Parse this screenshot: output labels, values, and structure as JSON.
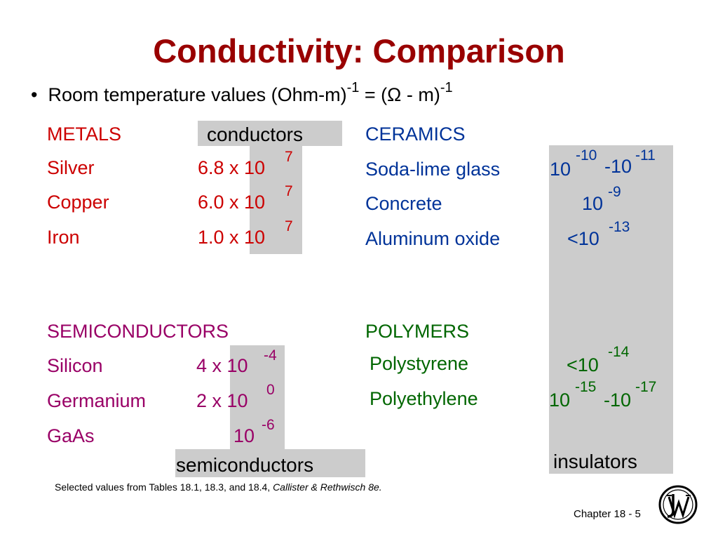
{
  "title": "Conductivity:  Comparison",
  "bullet": {
    "marker": "•",
    "text_a": "Room temperature values (Ohm-m)",
    "exp_a": "-1",
    "text_b": " = (",
    "omega": "Ω",
    "text_c": " - m)",
    "exp_b": "-1"
  },
  "boxes": {
    "conductors": "conductors",
    "semiconductors": "semiconductors",
    "insulators": "insulators"
  },
  "metals": {
    "header": "METALS",
    "rows": [
      {
        "name": "Silver",
        "mantissa": "6.8 x 10",
        "exp": "7"
      },
      {
        "name": "Copper",
        "mantissa": "6.0 x 10",
        "exp": "7"
      },
      {
        "name": "Iron",
        "mantissa": "1.0 x 10",
        "exp": "7"
      }
    ]
  },
  "semiconductors": {
    "header": "SEMICONDUCTORS",
    "rows": [
      {
        "name": "Silicon",
        "mantissa": "4 x 10",
        "exp": "-4"
      },
      {
        "name": "Germanium",
        "mantissa": "2 x 10",
        "exp": "0"
      },
      {
        "name": "GaAs",
        "mantissa": "10",
        "exp": "-6"
      }
    ]
  },
  "ceramics": {
    "header": "CERAMICS",
    "rows": [
      {
        "name": "Soda-lime glass",
        "v1": "10",
        "e1": "-10",
        "v2": "-10",
        "e2": "-11"
      },
      {
        "name": "Concrete",
        "v1": "10",
        "e1": "-9"
      },
      {
        "name": "Aluminum oxide",
        "v1": "<10",
        "e1": "-13"
      }
    ]
  },
  "polymers": {
    "header": "POLYMERS",
    "rows": [
      {
        "name": "Polystyrene",
        "v1": "<10",
        "e1": "-14"
      },
      {
        "name": "Polyethylene",
        "v1": "10",
        "e1": "-15",
        "v2": "-10",
        "e2": "-17"
      }
    ]
  },
  "footnote": {
    "text": "Selected values from Tables 18.1, 18.3, and 18.4, ",
    "citation": "Callister & Rethwisch 8e."
  },
  "footer": {
    "chapter": "Chapter 18 -  5"
  },
  "colors": {
    "title": "#990000",
    "metals": "#cc0000",
    "semiconductors": "#990066",
    "ceramics": "#003399",
    "polymers": "#006600",
    "highlight": "#cccccc"
  },
  "logo": {
    "icon": "wiley-logo-icon",
    "lettering": "JW"
  }
}
